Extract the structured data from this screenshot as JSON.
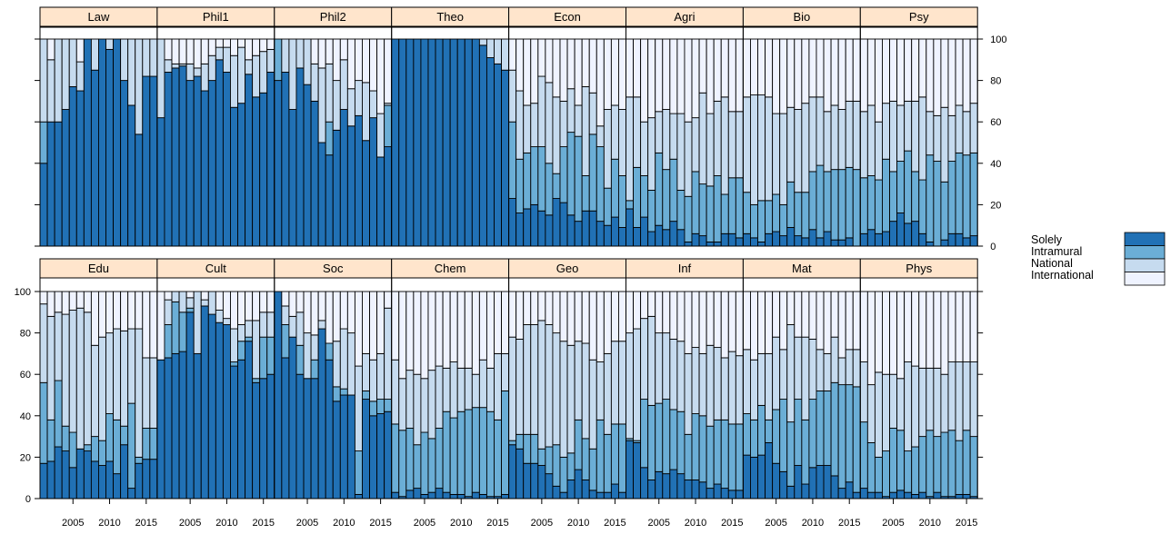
{
  "chart_data": {
    "type": "bar",
    "subtype": "stacked-100-percent, lattice small multiples (2 rows x 8 panels)",
    "x_range": [
      2001,
      2016
    ],
    "x_ticks": [
      2005,
      2010,
      2015
    ],
    "y_range": [
      0,
      100
    ],
    "y_ticks": [
      0,
      20,
      40,
      60,
      80,
      100
    ],
    "categories_order": [
      "Solely",
      "Intramural",
      "National",
      "International"
    ],
    "colors": {
      "Solely": "#2171b5",
      "Intramural": "#6baed6",
      "National": "#c6dbef",
      "International": "#eff3ff",
      "strip_background": "#ffe5cc",
      "bar_edge": "#000000"
    },
    "legend": {
      "placement": "right",
      "items": [
        {
          "label": "Solely",
          "color": "#2171b5"
        },
        {
          "label": "Intramural",
          "color": "#6baed6"
        },
        {
          "label": "National",
          "color": "#c6dbef"
        },
        {
          "label": "International",
          "color": "#eff3ff"
        }
      ]
    },
    "panels": [
      {
        "label": "Law",
        "row": 0,
        "cumulative": {
          "solely": [
            40,
            60,
            60,
            66,
            77,
            75,
            100,
            85,
            100,
            95,
            100,
            80,
            68,
            54,
            82,
            82
          ],
          "intra": [
            60,
            60,
            60,
            66,
            77,
            75,
            100,
            85,
            100,
            95,
            100,
            80,
            68,
            54,
            82,
            82
          ],
          "national": [
            100,
            90,
            100,
            100,
            100,
            89,
            100,
            100,
            100,
            100,
            100,
            100,
            100,
            100,
            100,
            100
          ]
        }
      },
      {
        "label": "Phil1",
        "row": 0,
        "cumulative": {
          "solely": [
            62,
            84,
            86,
            87,
            80,
            82,
            75,
            80,
            90,
            84,
            67,
            69,
            83,
            72,
            74,
            84
          ],
          "intra": [
            62,
            84,
            86,
            87,
            80,
            82,
            75,
            80,
            90,
            84,
            67,
            69,
            83,
            72,
            74,
            84
          ],
          "national": [
            100,
            90,
            88,
            88,
            88,
            86,
            88,
            92,
            96,
            96,
            92,
            96,
            90,
            92,
            94,
            95
          ]
        }
      },
      {
        "label": "Phil2",
        "row": 0,
        "cumulative": {
          "solely": [
            80,
            84,
            66,
            86,
            78,
            70,
            50,
            44,
            56,
            66,
            58,
            63,
            51,
            62,
            43,
            48
          ],
          "intra": [
            100,
            84,
            66,
            86,
            78,
            70,
            50,
            60,
            56,
            66,
            58,
            63,
            51,
            62,
            43,
            68
          ],
          "national": [
            100,
            100,
            100,
            100,
            100,
            88,
            86,
            88,
            80,
            90,
            76,
            80,
            79,
            75,
            64,
            69
          ]
        }
      },
      {
        "label": "Theo",
        "row": 0,
        "cumulative": {
          "solely": [
            100,
            100,
            100,
            100,
            100,
            100,
            100,
            100,
            100,
            100,
            100,
            100,
            97,
            91,
            88,
            85
          ],
          "intra": [
            100,
            100,
            100,
            100,
            100,
            100,
            100,
            100,
            100,
            100,
            100,
            100,
            97,
            91,
            88,
            85
          ],
          "national": [
            100,
            100,
            100,
            100,
            100,
            100,
            100,
            100,
            100,
            100,
            100,
            100,
            100,
            100,
            100,
            100
          ]
        }
      },
      {
        "label": "Econ",
        "row": 0,
        "cumulative": {
          "solely": [
            23,
            16,
            18,
            20,
            17,
            15,
            23,
            21,
            15,
            12,
            17,
            17,
            12,
            10,
            14,
            9
          ],
          "intra": [
            60,
            42,
            45,
            48,
            48,
            40,
            35,
            48,
            55,
            53,
            34,
            54,
            48,
            28,
            42,
            34
          ],
          "national": [
            85,
            75,
            68,
            69,
            82,
            79,
            72,
            70,
            76,
            68,
            77,
            74,
            58,
            66,
            68,
            66
          ]
        }
      },
      {
        "label": "Agri",
        "row": 0,
        "cumulative": {
          "solely": [
            18,
            9,
            14,
            7,
            10,
            8,
            12,
            8,
            2,
            6,
            5,
            2,
            2,
            6,
            6,
            4
          ],
          "intra": [
            22,
            38,
            34,
            27,
            45,
            37,
            42,
            27,
            24,
            36,
            30,
            29,
            34,
            25,
            33,
            33
          ],
          "national": [
            72,
            72,
            60,
            62,
            65,
            66,
            64,
            64,
            60,
            62,
            74,
            64,
            70,
            72,
            65,
            65
          ]
        }
      },
      {
        "label": "Bio",
        "row": 0,
        "cumulative": {
          "solely": [
            6,
            4,
            2,
            6,
            7,
            5,
            9,
            5,
            4,
            8,
            4,
            7,
            3,
            3,
            4,
            0
          ],
          "intra": [
            26,
            20,
            22,
            22,
            25,
            20,
            31,
            26,
            26,
            36,
            39,
            36,
            37,
            37,
            38,
            37
          ],
          "national": [
            72,
            73,
            73,
            72,
            64,
            64,
            67,
            66,
            69,
            72,
            72,
            65,
            68,
            66,
            70,
            70
          ]
        }
      },
      {
        "label": "Psy",
        "row": 0,
        "cumulative": {
          "solely": [
            6,
            8,
            6,
            7,
            12,
            16,
            11,
            12,
            6,
            2,
            0,
            3,
            6,
            6,
            4,
            5
          ],
          "intra": [
            33,
            34,
            32,
            42,
            36,
            41,
            46,
            36,
            32,
            44,
            41,
            31,
            41,
            45,
            44,
            45
          ],
          "national": [
            65,
            68,
            60,
            69,
            70,
            68,
            70,
            70,
            72,
            65,
            63,
            67,
            63,
            68,
            65,
            69
          ]
        }
      },
      {
        "label": "Edu",
        "row": 1,
        "cumulative": {
          "solely": [
            17,
            18,
            25,
            23,
            15,
            24,
            23,
            18,
            16,
            18,
            12,
            26,
            5,
            17,
            19,
            19
          ],
          "intra": [
            56,
            38,
            57,
            35,
            32,
            24,
            26,
            30,
            28,
            41,
            38,
            35,
            46,
            20,
            34,
            34
          ],
          "national": [
            94,
            88,
            90,
            89,
            91,
            92,
            90,
            74,
            78,
            80,
            82,
            81,
            82,
            82,
            68,
            68
          ]
        }
      },
      {
        "label": "Cult",
        "row": 1,
        "cumulative": {
          "solely": [
            67,
            68,
            70,
            71,
            90,
            70,
            93,
            89,
            85,
            84,
            64,
            67,
            76,
            56,
            58,
            60
          ],
          "intra": [
            67,
            84,
            95,
            90,
            92,
            70,
            93,
            89,
            85,
            84,
            66,
            76,
            78,
            58,
            78,
            78
          ],
          "national": [
            67,
            96,
            100,
            100,
            97,
            100,
            96,
            100,
            91,
            87,
            82,
            84,
            86,
            86,
            90,
            90
          ]
        }
      },
      {
        "label": "Soc",
        "row": 1,
        "cumulative": {
          "solely": [
            100,
            68,
            78,
            60,
            58,
            58,
            82,
            67,
            47,
            50,
            50,
            2,
            48,
            40,
            41,
            42
          ],
          "intra": [
            100,
            84,
            78,
            74,
            58,
            67,
            82,
            76,
            54,
            53,
            50,
            23,
            52,
            47,
            48,
            48
          ],
          "national": [
            100,
            93,
            88,
            90,
            80,
            79,
            86,
            75,
            76,
            82,
            80,
            64,
            70,
            67,
            70,
            92
          ]
        }
      },
      {
        "label": "Chem",
        "row": 1,
        "cumulative": {
          "solely": [
            3,
            1,
            4,
            5,
            2,
            3,
            5,
            3,
            2,
            2,
            1,
            3,
            2,
            1,
            1,
            2
          ],
          "intra": [
            36,
            33,
            34,
            26,
            32,
            29,
            34,
            42,
            39,
            42,
            43,
            44,
            44,
            42,
            38,
            52
          ],
          "national": [
            67,
            58,
            62,
            60,
            58,
            62,
            64,
            63,
            66,
            63,
            63,
            60,
            67,
            63,
            70,
            70
          ]
        }
      },
      {
        "label": "Geo",
        "row": 1,
        "cumulative": {
          "solely": [
            26,
            24,
            17,
            17,
            16,
            12,
            6,
            3,
            9,
            14,
            9,
            4,
            3,
            3,
            7,
            3
          ],
          "intra": [
            28,
            31,
            31,
            31,
            24,
            25,
            26,
            20,
            22,
            38,
            29,
            24,
            38,
            31,
            36,
            36
          ],
          "national": [
            78,
            77,
            84,
            84,
            86,
            84,
            80,
            76,
            74,
            76,
            75,
            67,
            66,
            70,
            76,
            76
          ]
        }
      },
      {
        "label": "Inf",
        "row": 1,
        "cumulative": {
          "solely": [
            28,
            27,
            15,
            9,
            13,
            12,
            14,
            12,
            9,
            9,
            8,
            5,
            7,
            5,
            4,
            4
          ],
          "intra": [
            29,
            28,
            48,
            45,
            46,
            48,
            43,
            42,
            31,
            41,
            40,
            35,
            38,
            38,
            36,
            36
          ],
          "national": [
            80,
            82,
            87,
            88,
            80,
            80,
            77,
            76,
            70,
            73,
            70,
            74,
            73,
            68,
            71,
            69
          ]
        }
      },
      {
        "label": "Mat",
        "row": 1,
        "cumulative": {
          "solely": [
            21,
            20,
            21,
            27,
            17,
            13,
            6,
            16,
            7,
            15,
            16,
            16,
            11,
            5,
            8,
            3
          ],
          "intra": [
            41,
            38,
            45,
            38,
            43,
            48,
            37,
            48,
            38,
            48,
            52,
            52,
            56,
            55,
            55,
            54
          ],
          "national": [
            72,
            67,
            70,
            70,
            78,
            72,
            84,
            78,
            78,
            77,
            72,
            70,
            78,
            68,
            72,
            72
          ]
        }
      },
      {
        "label": "Phys",
        "row": 1,
        "cumulative": {
          "solely": [
            5,
            3,
            3,
            1,
            3,
            4,
            3,
            2,
            3,
            1,
            3,
            1,
            1,
            2,
            2,
            1
          ],
          "intra": [
            37,
            27,
            20,
            23,
            34,
            33,
            23,
            25,
            30,
            33,
            30,
            32,
            33,
            28,
            33,
            30
          ],
          "national": [
            66,
            55,
            61,
            60,
            60,
            58,
            66,
            64,
            63,
            63,
            63,
            60,
            66,
            66,
            66,
            66
          ]
        }
      }
    ]
  }
}
